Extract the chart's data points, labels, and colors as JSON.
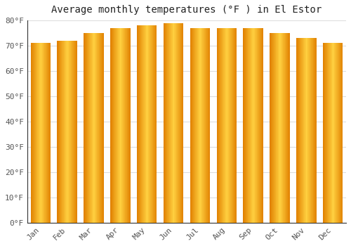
{
  "title": "Average monthly temperatures (°F ) in El Estor",
  "months": [
    "Jan",
    "Feb",
    "Mar",
    "Apr",
    "May",
    "Jun",
    "Jul",
    "Aug",
    "Sep",
    "Oct",
    "Nov",
    "Dec"
  ],
  "values": [
    71,
    72,
    75,
    77,
    78,
    79,
    77,
    77,
    77,
    75,
    73,
    71
  ],
  "bar_edge_color": "#E08000",
  "bar_center_color": "#FFD040",
  "background_color": "#ffffff",
  "plot_bg_color": "#ffffff",
  "grid_color": "#dddddd",
  "axis_color": "#333333",
  "tick_color": "#555555",
  "ylim": [
    0,
    80
  ],
  "yticks": [
    0,
    10,
    20,
    30,
    40,
    50,
    60,
    70,
    80
  ],
  "ytick_labels": [
    "0°F",
    "10°F",
    "20°F",
    "30°F",
    "40°F",
    "50°F",
    "60°F",
    "70°F",
    "80°F"
  ],
  "title_fontsize": 10,
  "tick_fontsize": 8,
  "bar_width": 0.75
}
